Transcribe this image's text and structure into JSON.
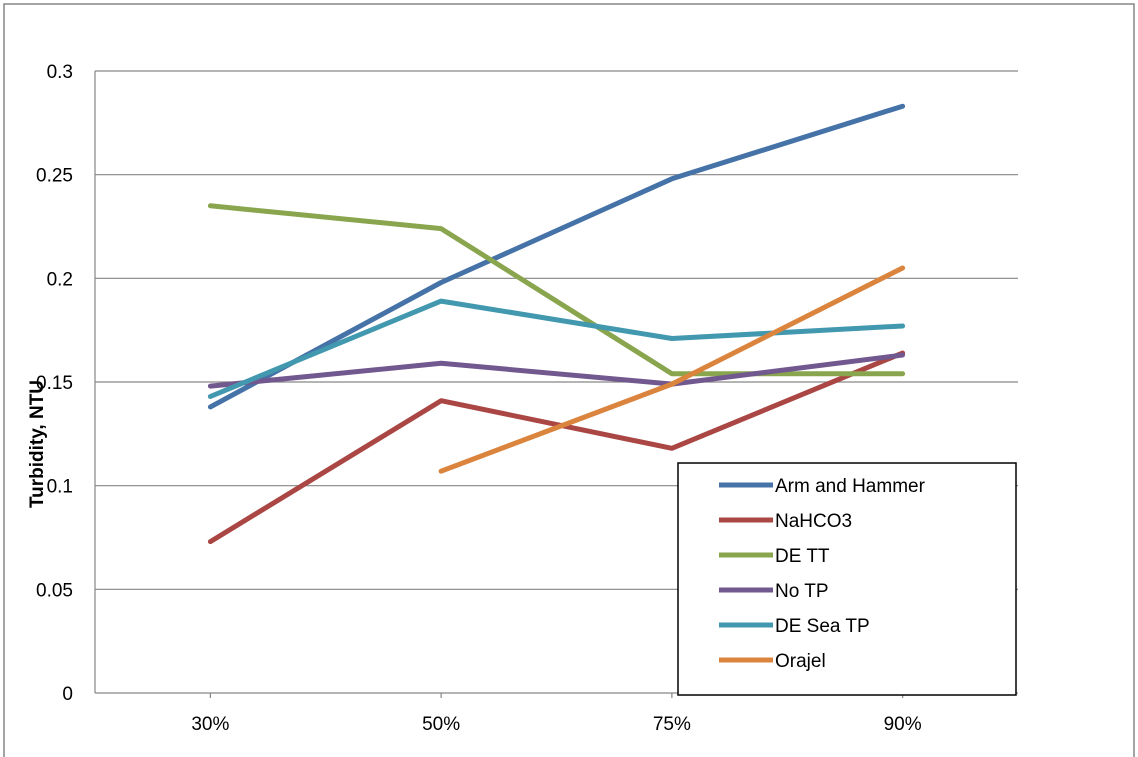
{
  "chart_data": {
    "type": "line",
    "title": "",
    "xlabel": "",
    "ylabel": "Turbidity, NTU",
    "categories": [
      "30%",
      "50%",
      "75%",
      "90%"
    ],
    "ylim": [
      0,
      0.3
    ],
    "y_ticks": [
      0,
      0.05,
      0.1,
      0.15,
      0.2,
      0.25,
      0.3
    ],
    "y_tick_labels": [
      "0",
      "0.05",
      "0.1",
      "0.15",
      "0.2",
      "0.25",
      "0.3"
    ],
    "grid": "horizontal",
    "legend_position": "bottom-right",
    "series": [
      {
        "name": "Arm and Hammer",
        "color": "#4572A7",
        "values": [
          0.138,
          0.198,
          0.248,
          0.283
        ]
      },
      {
        "name": "NaHCO3",
        "color": "#AA4643",
        "values": [
          0.073,
          0.141,
          0.118,
          0.164
        ]
      },
      {
        "name": "DE TT",
        "color": "#89A54E",
        "values": [
          0.235,
          0.224,
          0.154,
          0.154
        ]
      },
      {
        "name": "No TP",
        "color": "#71588F",
        "values": [
          0.148,
          0.159,
          0.149,
          0.163
        ]
      },
      {
        "name": "DE Sea TP",
        "color": "#4198AF",
        "values": [
          0.143,
          0.189,
          0.171,
          0.177
        ]
      },
      {
        "name": "Orajel",
        "color": "#DB843D",
        "values": [
          null,
          0.107,
          0.149,
          0.205
        ]
      }
    ]
  }
}
